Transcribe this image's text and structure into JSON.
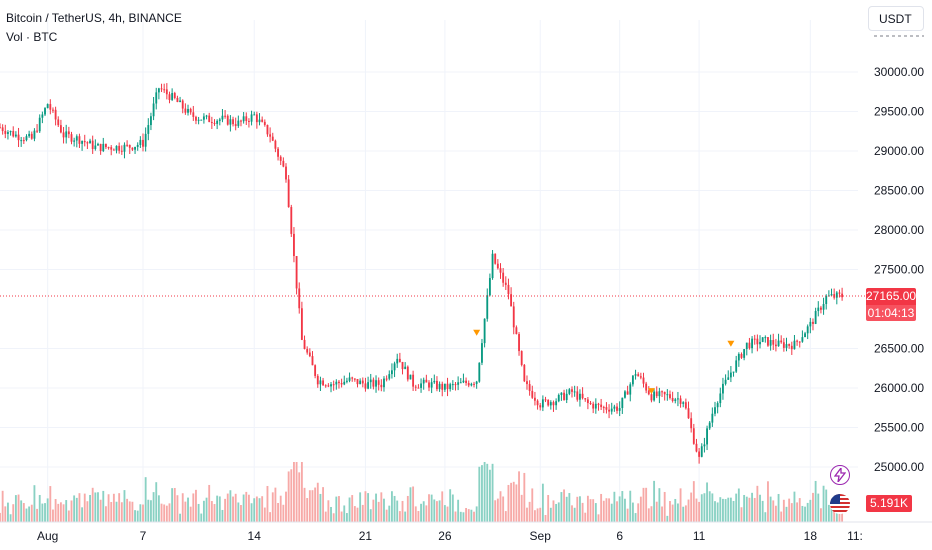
{
  "header": {
    "title": "Bitcoin / TetherUS, 4h, BINANCE",
    "volume_label": "Vol · BTC"
  },
  "currency_button": {
    "label": "USDT"
  },
  "price_axis": {
    "ticks": [
      "30000.00",
      "29500.00",
      "29000.00",
      "28500.00",
      "28000.00",
      "27500.00",
      "26500.00",
      "26000.00",
      "25500.00",
      "25000.00"
    ]
  },
  "badges": {
    "last_price": "27165.00",
    "countdown": "01:04:13",
    "volume": "5.191K"
  },
  "time_axis": {
    "ticks": [
      "Aug",
      "7",
      "14",
      "21",
      "26",
      "Sep",
      "6",
      "11",
      "18",
      "11:"
    ]
  },
  "colors": {
    "up": "#089981",
    "down": "#f23645",
    "up_volume": "#89d1c3",
    "down_volume": "#f7a9a7",
    "marker": "#ff9800",
    "price_line": "#f23645"
  },
  "icons": {
    "lightning": "lightning-icon",
    "flag": "us-flag-icon"
  },
  "chart_data": {
    "type": "candlestick",
    "symbol": "BTCUSDT",
    "interval": "4h",
    "y_range": [
      24900,
      30300
    ],
    "last_price": 27165,
    "x_ticks": [
      {
        "label": "Aug",
        "date": "2023-08-01"
      },
      {
        "label": "7",
        "date": "2023-08-07"
      },
      {
        "label": "14",
        "date": "2023-08-14"
      },
      {
        "label": "21",
        "date": "2023-08-21"
      },
      {
        "label": "26",
        "date": "2023-08-26"
      },
      {
        "label": "Sep",
        "date": "2023-09-01"
      },
      {
        "label": "6",
        "date": "2023-09-06"
      },
      {
        "label": "11",
        "date": "2023-09-11"
      },
      {
        "label": "18",
        "date": "2023-09-18"
      }
    ],
    "price_path": [
      [
        "2023-07-29",
        29300
      ],
      [
        "2023-07-30",
        29200
      ],
      [
        "2023-07-31",
        29150
      ],
      [
        "2023-08-01",
        29600
      ],
      [
        "2023-08-02",
        29200
      ],
      [
        "2023-08-03",
        29150
      ],
      [
        "2023-08-04",
        29050
      ],
      [
        "2023-08-05",
        29050
      ],
      [
        "2023-08-06",
        29050
      ],
      [
        "2023-08-07",
        29100
      ],
      [
        "2023-08-08",
        29800
      ],
      [
        "2023-08-09",
        29650
      ],
      [
        "2023-08-10",
        29450
      ],
      [
        "2023-08-11",
        29400
      ],
      [
        "2023-08-12",
        29400
      ],
      [
        "2023-08-13",
        29350
      ],
      [
        "2023-08-14",
        29450
      ],
      [
        "2023-08-15",
        29200
      ],
      [
        "2023-08-16",
        28700
      ],
      [
        "2023-08-17",
        26600
      ],
      [
        "2023-08-18",
        26100
      ],
      [
        "2023-08-19",
        26050
      ],
      [
        "2023-08-20",
        26100
      ],
      [
        "2023-08-21",
        26050
      ],
      [
        "2023-08-22",
        26050
      ],
      [
        "2023-08-23",
        26400
      ],
      [
        "2023-08-24",
        26050
      ],
      [
        "2023-08-25",
        26050
      ],
      [
        "2023-08-26",
        26000
      ],
      [
        "2023-08-27",
        26050
      ],
      [
        "2023-08-28",
        26100
      ],
      [
        "2023-08-29",
        27650
      ],
      [
        "2023-08-30",
        27200
      ],
      [
        "2023-08-31",
        26050
      ],
      [
        "2023-09-01",
        25800
      ],
      [
        "2023-09-02",
        25850
      ],
      [
        "2023-09-03",
        25950
      ],
      [
        "2023-09-04",
        25800
      ],
      [
        "2023-09-05",
        25750
      ],
      [
        "2023-09-06",
        25750
      ],
      [
        "2023-09-07",
        26200
      ],
      [
        "2023-09-08",
        25900
      ],
      [
        "2023-09-09",
        25900
      ],
      [
        "2023-09-10",
        25850
      ],
      [
        "2023-09-11",
        25100
      ],
      [
        "2023-09-12",
        25800
      ],
      [
        "2023-09-13",
        26200
      ],
      [
        "2023-09-14",
        26550
      ],
      [
        "2023-09-15",
        26600
      ],
      [
        "2023-09-16",
        26550
      ],
      [
        "2023-09-17",
        26550
      ],
      [
        "2023-09-18",
        26800
      ],
      [
        "2023-09-19",
        27150
      ],
      [
        "2023-09-20",
        27165
      ]
    ],
    "markers": [
      {
        "date": "2023-08-28",
        "price": 26700
      },
      {
        "date": "2023-09-08",
        "price": 25960
      },
      {
        "date": "2023-09-13",
        "price": 26560
      }
    ]
  }
}
